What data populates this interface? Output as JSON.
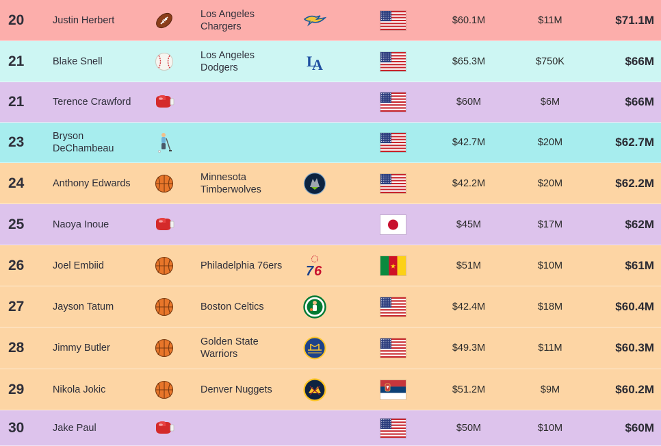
{
  "rows": [
    {
      "rank": "20",
      "name": "Justin Herbert",
      "sport": "football",
      "team": "Los Angeles Chargers",
      "logo": "chargers",
      "flag": "usa",
      "salary": "$60.1M",
      "endorse": "$11M",
      "total": "$71.1M",
      "bg": "#fcaeab"
    },
    {
      "rank": "21",
      "name": "Blake Snell",
      "sport": "baseball",
      "team": "Los Angeles Dodgers",
      "logo": "dodgers",
      "flag": "usa",
      "salary": "$65.3M",
      "endorse": "$750K",
      "total": "$66M",
      "bg": "#cdf6f3"
    },
    {
      "rank": "21",
      "name": "Terence Crawford",
      "sport": "boxing",
      "team": "",
      "logo": "",
      "flag": "usa",
      "salary": "$60M",
      "endorse": "$6M",
      "total": "$66M",
      "bg": "#ddc3ec"
    },
    {
      "rank": "23",
      "name": "Bryson DeChambeau",
      "sport": "golf",
      "team": "",
      "logo": "",
      "flag": "usa",
      "salary": "$42.7M",
      "endorse": "$20M",
      "total": "$62.7M",
      "bg": "#a7edee"
    },
    {
      "rank": "24",
      "name": "Anthony Edwards",
      "sport": "basketball",
      "team": "Minnesota Timberwolves",
      "logo": "timberwolves",
      "flag": "usa",
      "salary": "$42.2M",
      "endorse": "$20M",
      "total": "$62.2M",
      "bg": "#fdd5a4"
    },
    {
      "rank": "25",
      "name": "Naoya Inoue",
      "sport": "boxing",
      "team": "",
      "logo": "",
      "flag": "japan",
      "salary": "$45M",
      "endorse": "$17M",
      "total": "$62M",
      "bg": "#ddc3ec"
    },
    {
      "rank": "26",
      "name": "Joel Embiid",
      "sport": "basketball",
      "team": "Philadelphia 76ers",
      "logo": "76ers",
      "flag": "cameroon",
      "salary": "$51M",
      "endorse": "$10M",
      "total": "$61M",
      "bg": "#fdd5a4"
    },
    {
      "rank": "27",
      "name": "Jayson Tatum",
      "sport": "basketball",
      "team": "Boston Celtics",
      "logo": "celtics",
      "flag": "usa",
      "salary": "$42.4M",
      "endorse": "$18M",
      "total": "$60.4M",
      "bg": "#fdd5a4"
    },
    {
      "rank": "28",
      "name": "Jimmy Butler",
      "sport": "basketball",
      "team": "Golden State Warriors",
      "logo": "warriors",
      "flag": "usa",
      "salary": "$49.3M",
      "endorse": "$11M",
      "total": "$60.3M",
      "bg": "#fdd5a4"
    },
    {
      "rank": "29",
      "name": "Nikola Jokic",
      "sport": "basketball",
      "team": "Denver Nuggets",
      "logo": "nuggets",
      "flag": "serbia",
      "salary": "$51.2M",
      "endorse": "$9M",
      "total": "$60.2M",
      "bg": "#fdd5a4"
    },
    {
      "rank": "30",
      "name": "Jake Paul",
      "sport": "boxing",
      "team": "",
      "logo": "",
      "flag": "usa",
      "salary": "$50M",
      "endorse": "$10M",
      "total": "$60M",
      "bg": "#ddc3ec"
    }
  ]
}
